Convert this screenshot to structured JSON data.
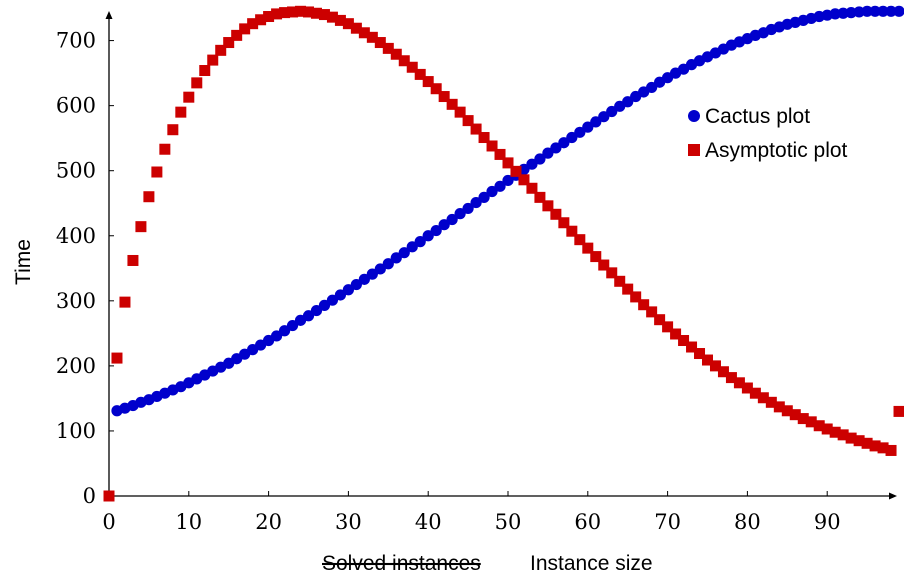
{
  "chart_data": {
    "type": "scatter",
    "xlabel_struck": "Solved instances",
    "xlabel": "Instance size",
    "ylabel": "Time",
    "xlim": [
      0,
      99
    ],
    "ylim": [
      0,
      745
    ],
    "x_ticks": [
      "0",
      "10",
      "20",
      "30",
      "40",
      "50",
      "60",
      "70",
      "80",
      "90"
    ],
    "y_ticks": [
      "0",
      "100",
      "200",
      "300",
      "400",
      "500",
      "600",
      "700"
    ],
    "legend_position": "top-right",
    "grid": false,
    "series": [
      {
        "name": "Cactus plot",
        "color": "#0000cc",
        "marker": "circle",
        "x": [
          1,
          2,
          3,
          4,
          5,
          6,
          7,
          8,
          9,
          10,
          11,
          12,
          13,
          14,
          15,
          16,
          17,
          18,
          19,
          20,
          21,
          22,
          23,
          24,
          25,
          26,
          27,
          28,
          29,
          30,
          31,
          32,
          33,
          34,
          35,
          36,
          37,
          38,
          39,
          40,
          41,
          42,
          43,
          44,
          45,
          46,
          47,
          48,
          49,
          50,
          51,
          52,
          53,
          54,
          55,
          56,
          57,
          58,
          59,
          60,
          61,
          62,
          63,
          64,
          65,
          66,
          67,
          68,
          69,
          70,
          71,
          72,
          73,
          74,
          75,
          76,
          77,
          78,
          79,
          80,
          81,
          82,
          83,
          84,
          85,
          86,
          87,
          88,
          89,
          90,
          91,
          92,
          93,
          94,
          95,
          96,
          97,
          98,
          99
        ],
        "y": [
          131,
          135,
          139,
          144,
          148,
          153,
          158,
          163,
          168,
          174,
          180,
          186,
          192,
          198,
          204,
          211,
          218,
          225,
          232,
          239,
          246,
          254,
          262,
          270,
          277,
          285,
          293,
          301,
          309,
          317,
          325,
          333,
          341,
          349,
          357,
          366,
          374,
          383,
          391,
          400,
          408,
          417,
          425,
          434,
          442,
          451,
          459,
          468,
          476,
          485,
          493,
          502,
          510,
          518,
          527,
          535,
          543,
          551,
          559,
          567,
          575,
          583,
          591,
          599,
          606,
          614,
          621,
          628,
          636,
          643,
          650,
          656,
          663,
          669,
          675,
          681,
          687,
          693,
          698,
          703,
          708,
          712,
          717,
          721,
          725,
          728,
          731,
          734,
          737,
          739,
          741,
          742,
          743,
          744,
          745,
          745,
          745,
          745,
          745
        ]
      },
      {
        "name": "Asymptotic plot",
        "color": "#cc0000",
        "marker": "square",
        "x": [
          0,
          1,
          2,
          3,
          4,
          5,
          6,
          7,
          8,
          9,
          10,
          11,
          12,
          13,
          14,
          15,
          16,
          17,
          18,
          19,
          20,
          21,
          22,
          23,
          24,
          25,
          26,
          27,
          28,
          29,
          30,
          31,
          32,
          33,
          34,
          35,
          36,
          37,
          38,
          39,
          40,
          41,
          42,
          43,
          44,
          45,
          46,
          47,
          48,
          49,
          50,
          51,
          52,
          53,
          54,
          55,
          56,
          57,
          58,
          59,
          60,
          61,
          62,
          63,
          64,
          65,
          66,
          67,
          68,
          69,
          70,
          71,
          72,
          73,
          74,
          75,
          76,
          77,
          78,
          79,
          80,
          81,
          82,
          83,
          84,
          85,
          86,
          87,
          88,
          89,
          90,
          91,
          92,
          93,
          94,
          95,
          96,
          97,
          98,
          99
        ],
        "y": [
          0,
          212,
          298,
          362,
          414,
          460,
          498,
          533,
          563,
          590,
          613,
          635,
          654,
          670,
          685,
          697,
          708,
          718,
          726,
          732,
          737,
          741,
          743,
          744,
          745,
          744,
          742,
          740,
          736,
          731,
          726,
          719,
          712,
          705,
          697,
          688,
          679,
          669,
          659,
          648,
          637,
          626,
          614,
          602,
          590,
          577,
          564,
          551,
          538,
          525,
          512,
          499,
          486,
          473,
          459,
          446,
          433,
          420,
          407,
          394,
          381,
          368,
          355,
          343,
          330,
          318,
          306,
          294,
          283,
          271,
          260,
          249,
          239,
          229,
          219,
          209,
          200,
          191,
          182,
          174,
          166,
          158,
          151,
          144,
          137,
          131,
          125,
          119,
          114,
          108,
          103,
          98,
          94,
          89,
          85,
          81,
          77,
          74,
          70,
          130
        ]
      }
    ]
  }
}
